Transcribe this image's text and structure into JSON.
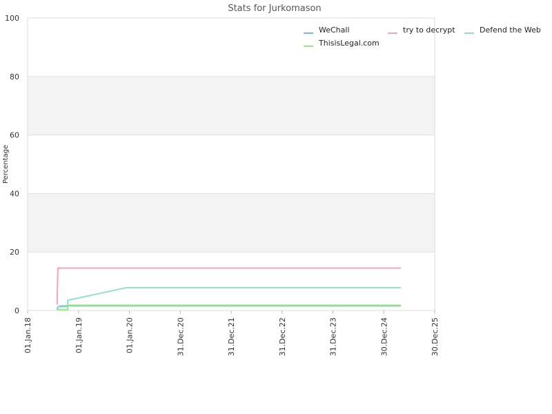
{
  "chart_data": {
    "type": "line",
    "title": "Stats for Jurkomason",
    "ylabel": "Percentage",
    "xlabel": "",
    "ylim": [
      0,
      100
    ],
    "yticks": [
      0,
      20,
      40,
      60,
      80,
      100
    ],
    "xlim": [
      "2018-01-01",
      "2025-12-30"
    ],
    "xtick_labels": [
      "01.Jan.18",
      "01.Jan.19",
      "01.Jan.20",
      "31.Dec.20",
      "31.Dec.21",
      "31.Dec.22",
      "31.Dec.23",
      "30.Dec.24",
      "30.Dec.25"
    ],
    "xtick_dates": [
      "2018-01-01",
      "2019-01-01",
      "2020-01-01",
      "2020-12-31",
      "2021-12-31",
      "2022-12-31",
      "2023-12-31",
      "2024-12-30",
      "2025-12-30"
    ],
    "grid": true,
    "legend_position": "top-right",
    "series": [
      {
        "name": "WeChall",
        "color": "#7cb5ec",
        "points": [
          [
            "2018-08-01",
            0.3
          ],
          [
            "2018-08-05",
            1.2
          ],
          [
            "2018-08-20",
            1.5
          ],
          [
            "2018-10-01",
            1.6
          ],
          [
            "2024-12-30",
            1.6
          ],
          [
            "2025-05-01",
            1.6
          ]
        ]
      },
      {
        "name": "try to decrypt",
        "color": "#f7a1c4",
        "points": [
          [
            "2018-08-01",
            2
          ],
          [
            "2018-08-03",
            8
          ],
          [
            "2018-08-06",
            14.5
          ],
          [
            "2025-05-01",
            14.5
          ]
        ]
      },
      {
        "name": "Defend the Web",
        "color": "#90e0d0",
        "points": [
          [
            "2018-08-01",
            1.0
          ],
          [
            "2018-08-10",
            1.2
          ],
          [
            "2018-10-15",
            1.3
          ],
          [
            "2018-10-16",
            3.5
          ],
          [
            "2019-12-10",
            7.8
          ],
          [
            "2025-05-01",
            7.8
          ]
        ]
      },
      {
        "name": "ThisisLegal.com",
        "color": "#90ed7d",
        "points": [
          [
            "2018-08-01",
            0.3
          ],
          [
            "2018-10-15",
            0.3
          ],
          [
            "2018-10-16",
            1.8
          ],
          [
            "2025-05-01",
            1.8
          ]
        ]
      }
    ]
  }
}
